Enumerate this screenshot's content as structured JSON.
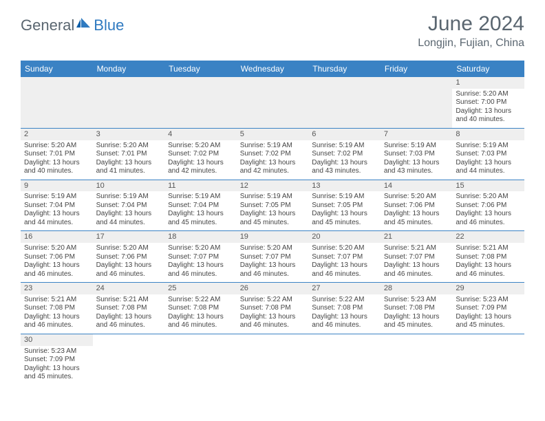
{
  "brand": {
    "part1": "General",
    "part2": "Blue"
  },
  "title": "June 2024",
  "location": "Longjin, Fujian, China",
  "colors": {
    "header_bg": "#3a82c4",
    "header_text": "#ffffff",
    "brand_gray": "#5a6670",
    "brand_blue": "#2f7ac0",
    "cell_border": "#3a82c4",
    "day_bg": "#efefef",
    "text": "#444444"
  },
  "day_headers": [
    "Sunday",
    "Monday",
    "Tuesday",
    "Wednesday",
    "Thursday",
    "Friday",
    "Saturday"
  ],
  "weeks": [
    [
      null,
      null,
      null,
      null,
      null,
      null,
      {
        "n": "1",
        "sr": "5:20 AM",
        "ss": "7:00 PM",
        "dl": "13 hours and 40 minutes."
      }
    ],
    [
      {
        "n": "2",
        "sr": "5:20 AM",
        "ss": "7:01 PM",
        "dl": "13 hours and 40 minutes."
      },
      {
        "n": "3",
        "sr": "5:20 AM",
        "ss": "7:01 PM",
        "dl": "13 hours and 41 minutes."
      },
      {
        "n": "4",
        "sr": "5:20 AM",
        "ss": "7:02 PM",
        "dl": "13 hours and 42 minutes."
      },
      {
        "n": "5",
        "sr": "5:19 AM",
        "ss": "7:02 PM",
        "dl": "13 hours and 42 minutes."
      },
      {
        "n": "6",
        "sr": "5:19 AM",
        "ss": "7:02 PM",
        "dl": "13 hours and 43 minutes."
      },
      {
        "n": "7",
        "sr": "5:19 AM",
        "ss": "7:03 PM",
        "dl": "13 hours and 43 minutes."
      },
      {
        "n": "8",
        "sr": "5:19 AM",
        "ss": "7:03 PM",
        "dl": "13 hours and 44 minutes."
      }
    ],
    [
      {
        "n": "9",
        "sr": "5:19 AM",
        "ss": "7:04 PM",
        "dl": "13 hours and 44 minutes."
      },
      {
        "n": "10",
        "sr": "5:19 AM",
        "ss": "7:04 PM",
        "dl": "13 hours and 44 minutes."
      },
      {
        "n": "11",
        "sr": "5:19 AM",
        "ss": "7:04 PM",
        "dl": "13 hours and 45 minutes."
      },
      {
        "n": "12",
        "sr": "5:19 AM",
        "ss": "7:05 PM",
        "dl": "13 hours and 45 minutes."
      },
      {
        "n": "13",
        "sr": "5:19 AM",
        "ss": "7:05 PM",
        "dl": "13 hours and 45 minutes."
      },
      {
        "n": "14",
        "sr": "5:20 AM",
        "ss": "7:06 PM",
        "dl": "13 hours and 45 minutes."
      },
      {
        "n": "15",
        "sr": "5:20 AM",
        "ss": "7:06 PM",
        "dl": "13 hours and 46 minutes."
      }
    ],
    [
      {
        "n": "16",
        "sr": "5:20 AM",
        "ss": "7:06 PM",
        "dl": "13 hours and 46 minutes."
      },
      {
        "n": "17",
        "sr": "5:20 AM",
        "ss": "7:06 PM",
        "dl": "13 hours and 46 minutes."
      },
      {
        "n": "18",
        "sr": "5:20 AM",
        "ss": "7:07 PM",
        "dl": "13 hours and 46 minutes."
      },
      {
        "n": "19",
        "sr": "5:20 AM",
        "ss": "7:07 PM",
        "dl": "13 hours and 46 minutes."
      },
      {
        "n": "20",
        "sr": "5:20 AM",
        "ss": "7:07 PM",
        "dl": "13 hours and 46 minutes."
      },
      {
        "n": "21",
        "sr": "5:21 AM",
        "ss": "7:07 PM",
        "dl": "13 hours and 46 minutes."
      },
      {
        "n": "22",
        "sr": "5:21 AM",
        "ss": "7:08 PM",
        "dl": "13 hours and 46 minutes."
      }
    ],
    [
      {
        "n": "23",
        "sr": "5:21 AM",
        "ss": "7:08 PM",
        "dl": "13 hours and 46 minutes."
      },
      {
        "n": "24",
        "sr": "5:21 AM",
        "ss": "7:08 PM",
        "dl": "13 hours and 46 minutes."
      },
      {
        "n": "25",
        "sr": "5:22 AM",
        "ss": "7:08 PM",
        "dl": "13 hours and 46 minutes."
      },
      {
        "n": "26",
        "sr": "5:22 AM",
        "ss": "7:08 PM",
        "dl": "13 hours and 46 minutes."
      },
      {
        "n": "27",
        "sr": "5:22 AM",
        "ss": "7:08 PM",
        "dl": "13 hours and 46 minutes."
      },
      {
        "n": "28",
        "sr": "5:23 AM",
        "ss": "7:08 PM",
        "dl": "13 hours and 45 minutes."
      },
      {
        "n": "29",
        "sr": "5:23 AM",
        "ss": "7:09 PM",
        "dl": "13 hours and 45 minutes."
      }
    ],
    [
      {
        "n": "30",
        "sr": "5:23 AM",
        "ss": "7:09 PM",
        "dl": "13 hours and 45 minutes."
      },
      null,
      null,
      null,
      null,
      null,
      null
    ]
  ],
  "labels": {
    "sunrise": "Sunrise: ",
    "sunset": "Sunset: ",
    "daylight": "Daylight: "
  }
}
